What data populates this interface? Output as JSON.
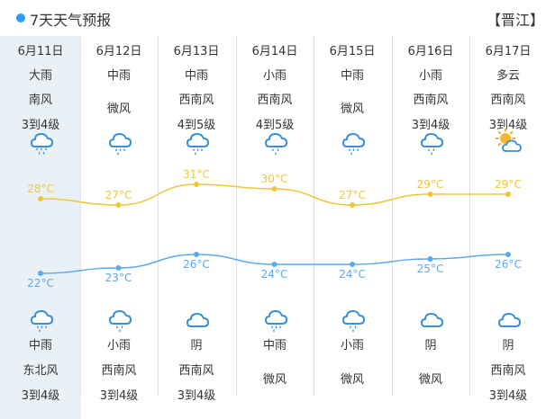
{
  "header": {
    "title": "7天天气预报",
    "city": "【晋江】"
  },
  "colors": {
    "high": "#f0c537",
    "low": "#5aaaf0",
    "accent": "#2a9df4",
    "today_bg": "#eaf1f6"
  },
  "days": [
    {
      "date": "6月11日",
      "day_weather": "大雨",
      "day_wind_dir": "南风",
      "day_wind_level": "3到4级",
      "day_icon": "heavy-rain-icon",
      "night_icon": "rain-cloud-icon",
      "night_weather": "中雨",
      "night_wind_dir": "东北风",
      "night_wind_level": "3到4级",
      "high": "28°C",
      "low": "22°C"
    },
    {
      "date": "6月12日",
      "day_weather": "中雨",
      "day_wind_dir": "微风",
      "day_wind_level": "",
      "day_icon": "rain-cloud-icon",
      "night_icon": "light-rain-icon",
      "night_weather": "小雨",
      "night_wind_dir": "西南风",
      "night_wind_level": "3到4级",
      "high": "27°C",
      "low": "23°C"
    },
    {
      "date": "6月13日",
      "day_weather": "中雨",
      "day_wind_dir": "西南风",
      "day_wind_level": "4到5级",
      "day_icon": "rain-cloud-icon",
      "night_icon": "cloud-icon",
      "night_weather": "阴",
      "night_wind_dir": "西南风",
      "night_wind_level": "3到4级",
      "high": "31°C",
      "low": "26°C"
    },
    {
      "date": "6月14日",
      "day_weather": "小雨",
      "day_wind_dir": "西南风",
      "day_wind_level": "4到5级",
      "day_icon": "light-rain-icon",
      "night_icon": "rain-cloud-icon",
      "night_weather": "中雨",
      "night_wind_dir": "微风",
      "night_wind_level": "",
      "high": "30°C",
      "low": "24°C"
    },
    {
      "date": "6月15日",
      "day_weather": "中雨",
      "day_wind_dir": "微风",
      "day_wind_level": "",
      "day_icon": "rain-cloud-icon",
      "night_icon": "light-rain-icon",
      "night_weather": "小雨",
      "night_wind_dir": "微风",
      "night_wind_level": "",
      "high": "27°C",
      "low": "24°C"
    },
    {
      "date": "6月16日",
      "day_weather": "小雨",
      "day_wind_dir": "西南风",
      "day_wind_level": "3到4级",
      "day_icon": "light-rain-icon",
      "night_icon": "cloud-icon",
      "night_weather": "阴",
      "night_wind_dir": "微风",
      "night_wind_level": "",
      "high": "29°C",
      "low": "25°C"
    },
    {
      "date": "6月17日",
      "day_weather": "多云",
      "day_wind_dir": "西南风",
      "day_wind_level": "3到4级",
      "day_icon": "partly-cloudy-icon",
      "night_icon": "cloud-icon",
      "night_weather": "阴",
      "night_wind_dir": "西南风",
      "night_wind_level": "3到4级",
      "high": "29°C",
      "low": "26°C"
    }
  ]
}
